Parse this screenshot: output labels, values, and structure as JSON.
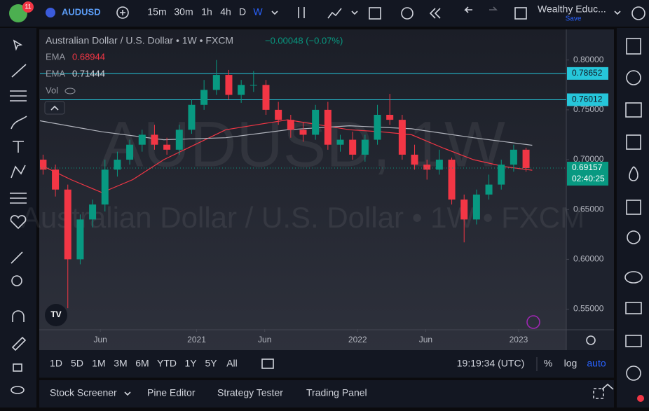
{
  "toolbar": {
    "badge": "11",
    "symbol": "AUDUSD",
    "intervals": [
      "15m",
      "30m",
      "1h",
      "4h",
      "D",
      "W"
    ],
    "layout_name": "Wealthy Educ...",
    "save": "Save"
  },
  "chart_data": {
    "type": "candlestick",
    "title": "Australian Dollar / U.S. Dollar • 1W • FXCM",
    "change": "−0.00048 (−0.07%)",
    "watermark": "AUDUSD, 1W",
    "volume_label": "Vol",
    "countdown": "02:40:25",
    "up_color": "#089981",
    "down_color": "#f23645",
    "x": [
      1,
      5,
      9,
      13,
      17,
      21,
      25,
      29,
      33,
      37,
      41,
      45,
      49,
      53,
      57,
      61,
      65,
      69,
      73,
      77,
      81,
      85,
      89,
      93,
      97,
      101,
      105,
      109,
      113,
      117,
      121,
      125,
      129,
      133,
      137,
      141,
      145,
      149,
      153,
      157
    ],
    "open": [
      0.7,
      0.69,
      0.67,
      0.6,
      0.64,
      0.655,
      0.69,
      0.7,
      0.715,
      0.725,
      0.715,
      0.71,
      0.73,
      0.755,
      0.77,
      0.785,
      0.765,
      0.775,
      0.775,
      0.75,
      0.74,
      0.73,
      0.725,
      0.75,
      0.715,
      0.72,
      0.705,
      0.72,
      0.745,
      0.74,
      0.705,
      0.695,
      0.69,
      0.7,
      0.66,
      0.64,
      0.665,
      0.675,
      0.695,
      0.71
    ],
    "high": [
      0.705,
      0.695,
      0.675,
      0.645,
      0.66,
      0.7,
      0.708,
      0.72,
      0.73,
      0.735,
      0.722,
      0.735,
      0.76,
      0.78,
      0.8,
      0.79,
      0.78,
      0.789,
      0.78,
      0.758,
      0.745,
      0.738,
      0.755,
      0.758,
      0.725,
      0.728,
      0.725,
      0.755,
      0.766,
      0.745,
      0.715,
      0.7,
      0.71,
      0.702,
      0.665,
      0.67,
      0.685,
      0.7,
      0.715,
      0.712
    ],
    "low": [
      0.685,
      0.663,
      0.551,
      0.595,
      0.632,
      0.648,
      0.683,
      0.695,
      0.708,
      0.71,
      0.705,
      0.705,
      0.726,
      0.75,
      0.765,
      0.76,
      0.757,
      0.768,
      0.745,
      0.735,
      0.722,
      0.718,
      0.72,
      0.71,
      0.708,
      0.7,
      0.698,
      0.715,
      0.735,
      0.7,
      0.69,
      0.68,
      0.685,
      0.655,
      0.617,
      0.635,
      0.66,
      0.67,
      0.688,
      0.688
    ],
    "close": [
      0.69,
      0.67,
      0.6,
      0.64,
      0.655,
      0.69,
      0.7,
      0.715,
      0.725,
      0.715,
      0.71,
      0.73,
      0.755,
      0.77,
      0.785,
      0.765,
      0.775,
      0.775,
      0.75,
      0.74,
      0.73,
      0.725,
      0.75,
      0.715,
      0.72,
      0.705,
      0.72,
      0.745,
      0.74,
      0.705,
      0.695,
      0.69,
      0.7,
      0.66,
      0.64,
      0.665,
      0.675,
      0.695,
      0.71,
      0.69157
    ],
    "ema_lines": [
      {
        "name": "EMA",
        "color": "#f23645",
        "x": [
          0,
          10,
          20,
          30,
          40,
          50,
          60,
          70,
          80,
          90,
          100,
          110,
          120,
          130,
          140,
          150,
          159
        ],
        "values": [
          0.695,
          0.68,
          0.667,
          0.68,
          0.7,
          0.715,
          0.73,
          0.735,
          0.74,
          0.735,
          0.73,
          0.728,
          0.725,
          0.712,
          0.7,
          0.693,
          0.68944
        ]
      },
      {
        "name": "EMA",
        "color": "#b2b5be",
        "x": [
          0,
          20,
          40,
          60,
          80,
          100,
          120,
          140,
          159
        ],
        "values": [
          0.739,
          0.728,
          0.72,
          0.722,
          0.73,
          0.734,
          0.731,
          0.722,
          0.71444
        ]
      }
    ],
    "horizontal_lines": [
      {
        "value": 0.78652,
        "color": "#26c6da"
      },
      {
        "value": 0.76012,
        "color": "#26c6da"
      }
    ],
    "xlim": [
      0,
      170
    ],
    "ylim": [
      0.53,
      0.83
    ],
    "xticks": [
      {
        "value": 19.5,
        "label": "Jun"
      },
      {
        "value": 50.6,
        "label": "2021"
      },
      {
        "value": 72.6,
        "label": "Jun"
      },
      {
        "value": 102.6,
        "label": "2022"
      },
      {
        "value": 124.6,
        "label": "Jun"
      },
      {
        "value": 154.6,
        "label": "2023"
      }
    ],
    "yticks": [
      {
        "value": 0.8,
        "label": "0.80000"
      },
      {
        "value": 0.75,
        "label": "0.75000"
      },
      {
        "value": 0.7,
        "label": "0.70000"
      },
      {
        "value": 0.65,
        "label": "0.65000"
      },
      {
        "value": 0.6,
        "label": "0.60000"
      },
      {
        "value": 0.55,
        "label": "0.55000"
      }
    ]
  },
  "range_bar": {
    "ranges": [
      "1D",
      "5D",
      "1M",
      "3M",
      "6M",
      "YTD",
      "1Y",
      "5Y",
      "All"
    ],
    "clock": "19:19:34 (UTC)",
    "percent": "%",
    "log": "log",
    "auto": "auto"
  },
  "bottom_panel": {
    "tabs": [
      "Stock Screener",
      "Pine Editor",
      "Strategy Tester",
      "Trading Panel"
    ]
  }
}
